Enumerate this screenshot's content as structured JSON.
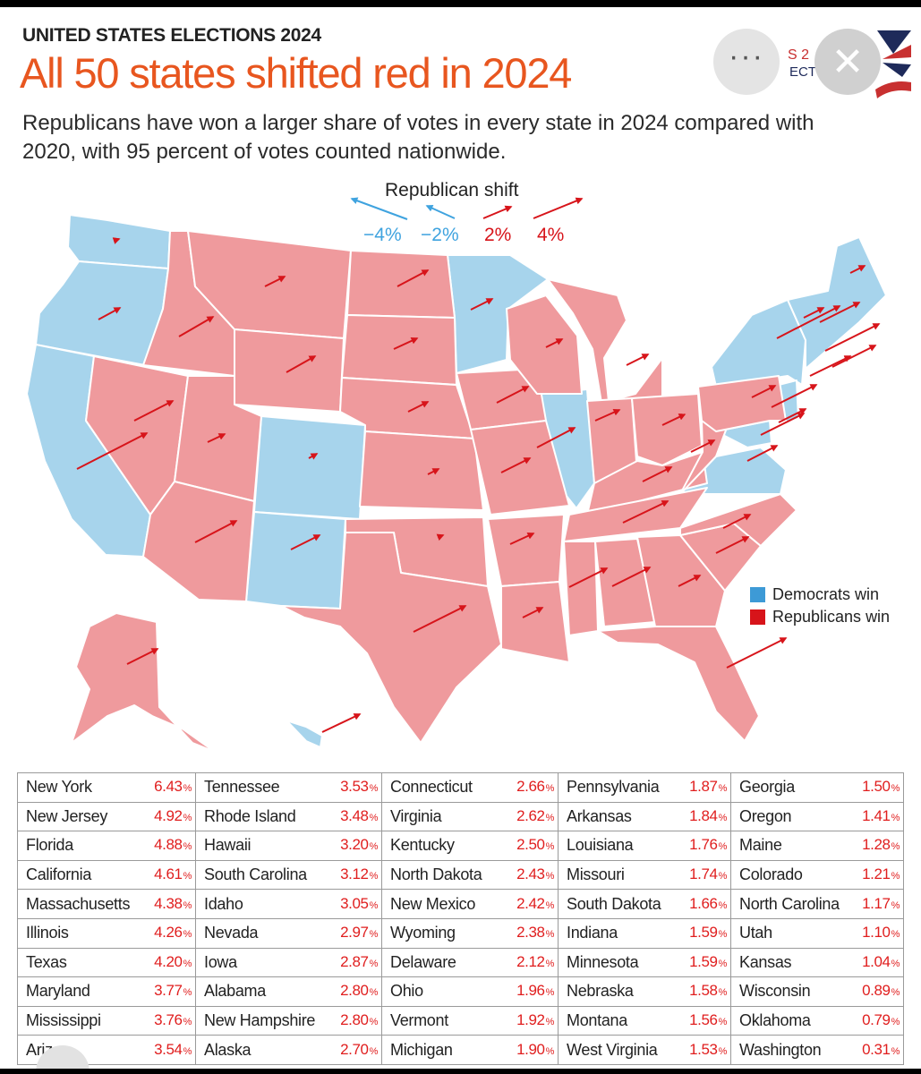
{
  "header": {
    "kicker": "UNITED STATES ELECTIONS 2024",
    "title": "All 50 states shifted red in 2024",
    "subtitle": "Republicans have won a larger share of votes in every state in 2024 compared with 2020, with 95 percent of votes counted nationwide.",
    "logo_fragment_1": "S 2",
    "logo_fragment_2": "ECT"
  },
  "controls": {
    "more_symbol": "···",
    "close_symbol": "✕"
  },
  "shift_legend": {
    "title": "Republican shift",
    "items": [
      "−4%",
      "−2%",
      "2%",
      "4%"
    ]
  },
  "map_legend": {
    "items": [
      {
        "label": "Democrats win",
        "color": "#3d9ad6"
      },
      {
        "label": "Republicans win",
        "color": "#d7141a"
      }
    ]
  },
  "colors": {
    "republican_state": "#ef9a9d",
    "democrat_state": "#a7d4ec",
    "arrow": "#d7141a",
    "dem_arrow": "#3fa3df",
    "pct_text": "#e01e1e",
    "title": "#e8561f"
  },
  "table": {
    "unit": "%",
    "columns": [
      [
        {
          "state": "New York",
          "pct": "6.43"
        },
        {
          "state": "New Jersey",
          "pct": "4.92"
        },
        {
          "state": "Florida",
          "pct": "4.88"
        },
        {
          "state": "California",
          "pct": "4.61"
        },
        {
          "state": "Massachusetts",
          "pct": "4.38"
        },
        {
          "state": "Illinois",
          "pct": "4.26"
        },
        {
          "state": "Texas",
          "pct": "4.20"
        },
        {
          "state": "Maryland",
          "pct": "3.77"
        },
        {
          "state": "Mississippi",
          "pct": "3.76"
        },
        {
          "state": "Ariz",
          "pct": "3.54"
        }
      ],
      [
        {
          "state": "Tennessee",
          "pct": "3.53"
        },
        {
          "state": "Rhode Island",
          "pct": "3.48"
        },
        {
          "state": "Hawaii",
          "pct": "3.20"
        },
        {
          "state": "South Carolina",
          "pct": "3.12"
        },
        {
          "state": "Idaho",
          "pct": "3.05"
        },
        {
          "state": "Nevada",
          "pct": "2.97"
        },
        {
          "state": "Iowa",
          "pct": "2.87"
        },
        {
          "state": "Alabama",
          "pct": "2.80"
        },
        {
          "state": "New Hampshire",
          "pct": "2.80"
        },
        {
          "state": "Alaska",
          "pct": "2.70"
        }
      ],
      [
        {
          "state": "Connecticut",
          "pct": "2.66"
        },
        {
          "state": "Virginia",
          "pct": "2.62"
        },
        {
          "state": "Kentucky",
          "pct": "2.50"
        },
        {
          "state": "North Dakota",
          "pct": "2.43"
        },
        {
          "state": "New Mexico",
          "pct": "2.42"
        },
        {
          "state": "Wyoming",
          "pct": "2.38"
        },
        {
          "state": "Delaware",
          "pct": "2.12"
        },
        {
          "state": "Ohio",
          "pct": "1.96"
        },
        {
          "state": "Vermont",
          "pct": "1.92"
        },
        {
          "state": "Michigan",
          "pct": "1.90"
        }
      ],
      [
        {
          "state": "Pennsylvania",
          "pct": "1.87"
        },
        {
          "state": "Arkansas",
          "pct": "1.84"
        },
        {
          "state": "Louisiana",
          "pct": "1.76"
        },
        {
          "state": "Missouri",
          "pct": "1.74"
        },
        {
          "state": "South Dakota",
          "pct": "1.66"
        },
        {
          "state": "Indiana",
          "pct": "1.59"
        },
        {
          "state": "Minnesota",
          "pct": "1.59"
        },
        {
          "state": "Nebraska",
          "pct": "1.58"
        },
        {
          "state": "Montana",
          "pct": "1.56"
        },
        {
          "state": "West Virginia",
          "pct": "1.53"
        }
      ],
      [
        {
          "state": "Georgia",
          "pct": "1.50"
        },
        {
          "state": "Oregon",
          "pct": "1.41"
        },
        {
          "state": "Maine",
          "pct": "1.28"
        },
        {
          "state": "Colorado",
          "pct": "1.21"
        },
        {
          "state": "North Carolina",
          "pct": "1.17"
        },
        {
          "state": "Utah",
          "pct": "1.10"
        },
        {
          "state": "Kansas",
          "pct": "1.04"
        },
        {
          "state": "Wisconsin",
          "pct": "0.89"
        },
        {
          "state": "Oklahoma",
          "pct": "0.79"
        },
        {
          "state": "Washington",
          "pct": "0.31"
        }
      ]
    ]
  }
}
